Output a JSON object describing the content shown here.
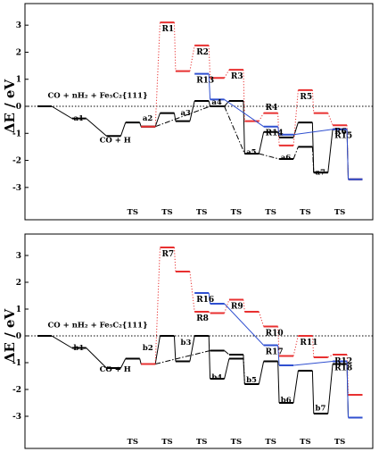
{
  "chart_data": [
    {
      "type": "line",
      "ylabel": "ΔE / eV",
      "ylim": [
        -3.6,
        3.6
      ],
      "yticks": [
        "3",
        "2",
        "1",
        "0",
        "-1",
        "-2",
        "-3"
      ],
      "xticks": [
        "TS",
        "TS",
        "TS",
        "TS",
        "TS",
        "TS",
        "TS"
      ],
      "zero_line": "dotted",
      "annotations": [
        {
          "text": "CO + nH₂ + Fe₅C₂{111}",
          "x": 0.4,
          "y": 0.25
        },
        {
          "text": "CO + H",
          "x": 1.9,
          "y": -1.4
        }
      ],
      "node_labels": [
        {
          "text": "a1",
          "x": 1.2,
          "y": -0.6
        },
        {
          "text": "a2",
          "x": 3.2,
          "y": -0.6
        },
        {
          "text": "a3",
          "x": 4.3,
          "y": -0.4
        },
        {
          "text": "a4",
          "x": 5.2,
          "y": 0
        },
        {
          "text": "a5",
          "x": 6.2,
          "y": -1.85
        },
        {
          "text": "a6",
          "x": 7.2,
          "y": -2.05
        },
        {
          "text": "a7",
          "x": 8.2,
          "y": -2.6
        }
      ],
      "series": [
        {
          "color": "#000000",
          "style": "solid",
          "levels": [
            {
              "x": 0,
              "y": 0
            },
            {
              "x": 1,
              "y": -0.45
            },
            {
              "x": 2,
              "y": -1.1
            },
            {
              "x": 2.55,
              "y": -0.6
            },
            {
              "x": 3,
              "y": -0.75
            },
            {
              "x": 3.55,
              "y": -0.25
            },
            {
              "x": 4,
              "y": -0.55
            },
            {
              "x": 4.55,
              "y": 0.2
            },
            {
              "x": 5,
              "y": 0
            },
            {
              "x": 5.55,
              "y": 0.2
            },
            {
              "x": 6,
              "y": -1.75
            },
            {
              "x": 6.55,
              "y": -0.95
            },
            {
              "x": 7,
              "y": -1.15
            },
            {
              "x": 7.55,
              "y": -0.6
            },
            {
              "x": 8,
              "y": -2.45
            },
            {
              "x": 8.55,
              "y": -0.85
            },
            {
              "x": 9,
              "y": -2.7
            }
          ]
        },
        {
          "color": "#000000",
          "style": "dash-dot",
          "levels": [
            {
              "x": 3,
              "y": -0.75
            },
            {
              "x": 5,
              "y": 0
            },
            {
              "x": 6,
              "y": -1.75
            },
            {
              "x": 7,
              "y": -1.95
            },
            {
              "x": 7.55,
              "y": -1.5
            },
            {
              "x": 8,
              "y": -2.45
            }
          ]
        },
        {
          "color": "#e83030",
          "style": "dotted",
          "levels": [
            {
              "x": 3,
              "y": -0.75
            },
            {
              "x": 3.55,
              "y": 3.1
            },
            {
              "x": 4,
              "y": 1.3
            },
            {
              "x": 4.55,
              "y": 2.25
            },
            {
              "x": 5,
              "y": 1.05
            },
            {
              "x": 5.55,
              "y": 1.35
            },
            {
              "x": 6,
              "y": -0.55
            },
            {
              "x": 6.55,
              "y": -0.25
            },
            {
              "x": 7,
              "y": -1.45
            },
            {
              "x": 7.55,
              "y": 0.6
            },
            {
              "x": 8,
              "y": -0.25
            },
            {
              "x": 8.55,
              "y": -0.7
            },
            {
              "x": 9,
              "y": -2.7
            }
          ]
        },
        {
          "color": "#3050d0",
          "style": "solid",
          "levels": [
            {
              "x": 4.55,
              "y": 1.2
            },
            {
              "x": 5,
              "y": 0.25
            },
            {
              "x": 6.55,
              "y": -0.75
            },
            {
              "x": 7,
              "y": -1.05
            },
            {
              "x": 8.55,
              "y": -0.85
            },
            {
              "x": 9,
              "y": -2.7
            }
          ]
        }
      ],
      "ts_labels": [
        {
          "text": "R1",
          "x": 3.55,
          "y": 3.1
        },
        {
          "text": "R2",
          "x": 4.55,
          "y": 2.25
        },
        {
          "text": "R13",
          "x": 4.55,
          "y": 1.2
        },
        {
          "text": "R3",
          "x": 5.55,
          "y": 1.35
        },
        {
          "text": "R4",
          "x": 6.55,
          "y": 0.2
        },
        {
          "text": "R14",
          "x": 6.55,
          "y": -0.75
        },
        {
          "text": "R5",
          "x": 7.55,
          "y": 0.6
        },
        {
          "text": "R6",
          "x": 8.55,
          "y": -0.7
        },
        {
          "text": "R15",
          "x": 8.55,
          "y": -0.85
        }
      ]
    },
    {
      "type": "line",
      "ylabel": "ΔE / eV",
      "ylim": [
        -3.6,
        3.6
      ],
      "yticks": [
        "3",
        "2",
        "1",
        "0",
        "-1",
        "-2",
        "-3"
      ],
      "xticks": [
        "TS",
        "TS",
        "TS",
        "TS",
        "TS",
        "TS",
        "TS"
      ],
      "zero_line": "dotted",
      "annotations": [
        {
          "text": "CO + nH₂ + Fe₅C₂{111}",
          "x": 0.4,
          "y": 0.25
        },
        {
          "text": "CO + H",
          "x": 1.9,
          "y": -1.4
        }
      ],
      "node_labels": [
        {
          "text": "b1",
          "x": 1.2,
          "y": -0.6
        },
        {
          "text": "b2",
          "x": 3.2,
          "y": -0.6
        },
        {
          "text": "b3",
          "x": 4.3,
          "y": -0.4
        },
        {
          "text": "b4",
          "x": 5.2,
          "y": -1.7
        },
        {
          "text": "b5",
          "x": 6.2,
          "y": -1.8
        },
        {
          "text": "b6",
          "x": 7.2,
          "y": -2.55
        },
        {
          "text": "b7",
          "x": 8.2,
          "y": -2.85
        }
      ],
      "series": [
        {
          "color": "#000000",
          "style": "solid",
          "levels": [
            {
              "x": 0,
              "y": 0
            },
            {
              "x": 1,
              "y": -0.45
            },
            {
              "x": 2,
              "y": -1.2
            },
            {
              "x": 2.55,
              "y": -0.85
            },
            {
              "x": 3,
              "y": -1.05
            },
            {
              "x": 3.55,
              "y": 0
            },
            {
              "x": 4,
              "y": -0.95
            },
            {
              "x": 4.55,
              "y": 0
            },
            {
              "x": 5,
              "y": -1.6
            },
            {
              "x": 5.55,
              "y": -0.85
            },
            {
              "x": 6,
              "y": -1.8
            },
            {
              "x": 6.55,
              "y": -0.95
            },
            {
              "x": 7,
              "y": -2.5
            },
            {
              "x": 7.55,
              "y": -1.3
            },
            {
              "x": 8,
              "y": -2.9
            },
            {
              "x": 8.55,
              "y": -1.05
            },
            {
              "x": 9,
              "y": -3.05
            }
          ]
        },
        {
          "color": "#000000",
          "style": "dash-dot",
          "levels": [
            {
              "x": 3,
              "y": -1.05
            },
            {
              "x": 5,
              "y": -0.55
            },
            {
              "x": 5.55,
              "y": -0.7
            },
            {
              "x": 6,
              "y": -1.8
            }
          ]
        },
        {
          "color": "#e83030",
          "style": "dotted",
          "levels": [
            {
              "x": 3,
              "y": -1.05
            },
            {
              "x": 3.55,
              "y": 3.3
            },
            {
              "x": 4,
              "y": 2.4
            },
            {
              "x": 4.55,
              "y": 0.9
            },
            {
              "x": 5,
              "y": 0.85
            },
            {
              "x": 5.55,
              "y": 1.35
            },
            {
              "x": 6,
              "y": 0.9
            },
            {
              "x": 6.55,
              "y": 0.35
            },
            {
              "x": 7,
              "y": -0.75
            },
            {
              "x": 7.55,
              "y": 0
            },
            {
              "x": 8,
              "y": -0.8
            },
            {
              "x": 8.55,
              "y": -0.7
            },
            {
              "x": 9,
              "y": -2.2
            }
          ]
        },
        {
          "color": "#3050d0",
          "style": "solid",
          "levels": [
            {
              "x": 4.55,
              "y": 1.6
            },
            {
              "x": 5,
              "y": 1.2
            },
            {
              "x": 6.55,
              "y": -0.35
            },
            {
              "x": 7,
              "y": -1.1
            },
            {
              "x": 8.55,
              "y": -0.95
            },
            {
              "x": 9,
              "y": -3.05
            }
          ]
        }
      ],
      "ts_labels": [
        {
          "text": "R7",
          "x": 3.55,
          "y": 3.3
        },
        {
          "text": "R16",
          "x": 4.55,
          "y": 1.6
        },
        {
          "text": "R8",
          "x": 4.55,
          "y": 0.9
        },
        {
          "text": "R9",
          "x": 5.55,
          "y": 1.35
        },
        {
          "text": "R10",
          "x": 6.55,
          "y": 0.35
        },
        {
          "text": "R17",
          "x": 6.55,
          "y": -0.35
        },
        {
          "text": "R11",
          "x": 7.55,
          "y": 0
        },
        {
          "text": "R12",
          "x": 8.55,
          "y": -0.7
        },
        {
          "text": "R18",
          "x": 8.55,
          "y": -0.95
        }
      ]
    }
  ]
}
